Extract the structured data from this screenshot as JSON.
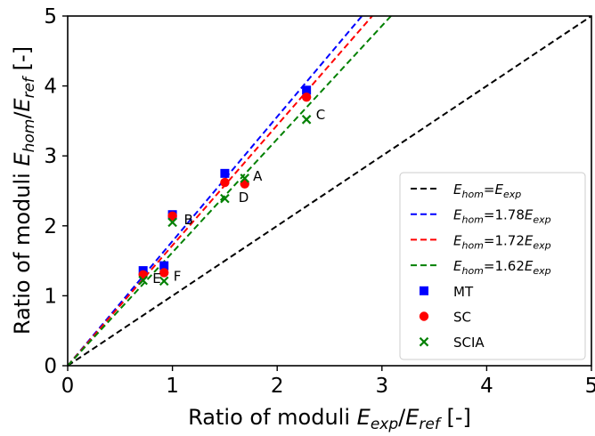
{
  "chart_data": {
    "type": "scatter",
    "xlim": [
      0,
      5
    ],
    "ylim": [
      0,
      5
    ],
    "x_ticks": [
      0,
      1,
      2,
      3,
      4,
      5
    ],
    "y_ticks": [
      0,
      1,
      2,
      3,
      4,
      5
    ],
    "xlabel": {
      "prefix": "Ratio of moduli ",
      "e1": "E",
      "s1": "exp",
      "slash": "/",
      "e2": "E",
      "s2": "ref",
      "suffix": " [-]"
    },
    "ylabel": {
      "prefix": "Ratio of moduli ",
      "e1": "E",
      "s1": "hom",
      "slash": "/",
      "e2": "E",
      "s2": "ref",
      "suffix": " [-]"
    },
    "grid": false,
    "legend_position": "lower right",
    "lines": [
      {
        "name": "E_hom=E_exp",
        "slope": 1.0,
        "color": "#000000",
        "label": {
          "e1": "E",
          "s1": "hom",
          "eq": "=",
          "coef": "",
          "e2": "E",
          "s2": "exp"
        }
      },
      {
        "name": "E_hom=1.78E_exp",
        "slope": 1.78,
        "color": "#0000ff",
        "label": {
          "e1": "E",
          "s1": "hom",
          "eq": "=",
          "coef": "1.78",
          "e2": "E",
          "s2": "exp"
        }
      },
      {
        "name": "E_hom=1.72E_exp",
        "slope": 1.72,
        "color": "#ff0000",
        "label": {
          "e1": "E",
          "s1": "hom",
          "eq": "=",
          "coef": "1.72",
          "e2": "E",
          "s2": "exp"
        }
      },
      {
        "name": "E_hom=1.62E_exp",
        "slope": 1.62,
        "color": "#008000",
        "label": {
          "e1": "E",
          "s1": "hom",
          "eq": "=",
          "coef": "1.62",
          "e2": "E",
          "s2": "exp"
        }
      }
    ],
    "series": [
      {
        "name": "MT",
        "marker": "square",
        "color": "#0000ff",
        "x": [
          0.72,
          0.92,
          1.0,
          1.5,
          2.28
        ],
        "y": [
          1.36,
          1.43,
          2.16,
          2.75,
          3.94
        ]
      },
      {
        "name": "SC",
        "marker": "circle",
        "color": "#ff0000",
        "x": [
          0.72,
          0.92,
          1.0,
          1.5,
          1.69,
          2.28
        ],
        "y": [
          1.3,
          1.33,
          2.14,
          2.62,
          2.6,
          3.84
        ]
      },
      {
        "name": "SCIA",
        "marker": "x",
        "color": "#008000",
        "x": [
          0.72,
          0.92,
          1.0,
          1.5,
          1.69,
          2.28
        ],
        "y": [
          1.22,
          1.21,
          2.05,
          2.39,
          2.68,
          3.52
        ]
      }
    ],
    "annotations": [
      {
        "text": "A",
        "x": 1.77,
        "y": 2.72
      },
      {
        "text": "B",
        "x": 1.11,
        "y": 2.1
      },
      {
        "text": "C",
        "x": 2.37,
        "y": 3.6
      },
      {
        "text": "D",
        "x": 1.63,
        "y": 2.42
      },
      {
        "text": "E",
        "x": 0.81,
        "y": 1.26
      },
      {
        "text": "F",
        "x": 1.01,
        "y": 1.29
      }
    ]
  }
}
